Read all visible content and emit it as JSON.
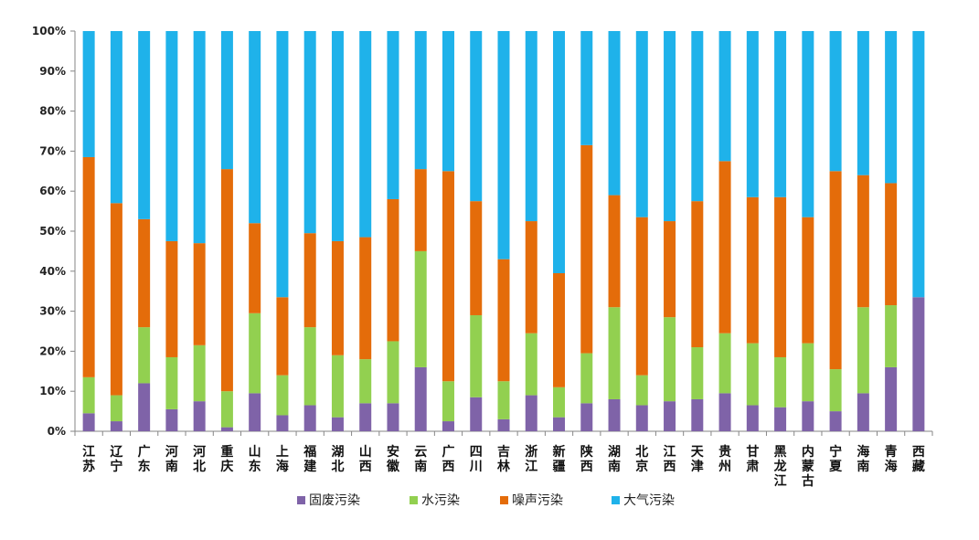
{
  "chart_data": {
    "type": "bar",
    "stacked": true,
    "percent_stacked": true,
    "categories": [
      "江苏",
      "辽宁",
      "广东",
      "河南",
      "河北",
      "重庆",
      "山东",
      "上海",
      "福建",
      "湖北",
      "山西",
      "安徽",
      "云南",
      "广西",
      "四川",
      "吉林",
      "浙江",
      "新疆",
      "陕西",
      "湖南",
      "北京",
      "江西",
      "天津",
      "贵州",
      "甘肃",
      "黑龙江",
      "内蒙古",
      "宁夏",
      "海南",
      "青海",
      "西藏"
    ],
    "series": [
      {
        "name": "固废污染",
        "color": "#7f63a8",
        "values": [
          4.5,
          2.5,
          12,
          5.5,
          7.5,
          1,
          9.5,
          4,
          6.5,
          3.5,
          7,
          7,
          16,
          2.5,
          8.5,
          3,
          9,
          3.5,
          7,
          8,
          6.5,
          7.5,
          8,
          9.5,
          6.5,
          6,
          7.5,
          5,
          9.5,
          16,
          33.5
        ]
      },
      {
        "name": "水污染",
        "color": "#92d050",
        "values": [
          9,
          6.5,
          14,
          13,
          14,
          9,
          20,
          10,
          19.5,
          15.5,
          11,
          15.5,
          29,
          10,
          20.5,
          9.5,
          15.5,
          7.5,
          12.5,
          23,
          7.5,
          21,
          13,
          15,
          15.5,
          12.5,
          14.5,
          10.5,
          21.5,
          15.5,
          0
        ]
      },
      {
        "name": "噪声污染",
        "color": "#e46c0a",
        "values": [
          55,
          48,
          27,
          29,
          25.5,
          55.5,
          22.5,
          19.5,
          23.5,
          28.5,
          30.5,
          35.5,
          20.5,
          52.5,
          28.5,
          30.5,
          28,
          28.5,
          52,
          28,
          39.5,
          24,
          36.5,
          43,
          36.5,
          40,
          31.5,
          49.5,
          33,
          30.5,
          0
        ]
      },
      {
        "name": "大气污染",
        "color": "#1fb2ea",
        "values": [
          31.5,
          43,
          47,
          52.5,
          53,
          34.5,
          48,
          66.5,
          50.5,
          52.5,
          51.5,
          42,
          34.5,
          35,
          42.5,
          57,
          47.5,
          60.5,
          28.5,
          41,
          46.5,
          47.5,
          42.5,
          32.5,
          41.5,
          41.5,
          46.5,
          35,
          36,
          38,
          66.5
        ]
      }
    ],
    "y_ticks": [
      "0%",
      "10%",
      "20%",
      "30%",
      "40%",
      "50%",
      "60%",
      "70%",
      "80%",
      "90%",
      "100%"
    ],
    "ylim": [
      0,
      100
    ],
    "legend_position": "bottom",
    "title": "",
    "xlabel": "",
    "ylabel": "",
    "grid": false
  }
}
